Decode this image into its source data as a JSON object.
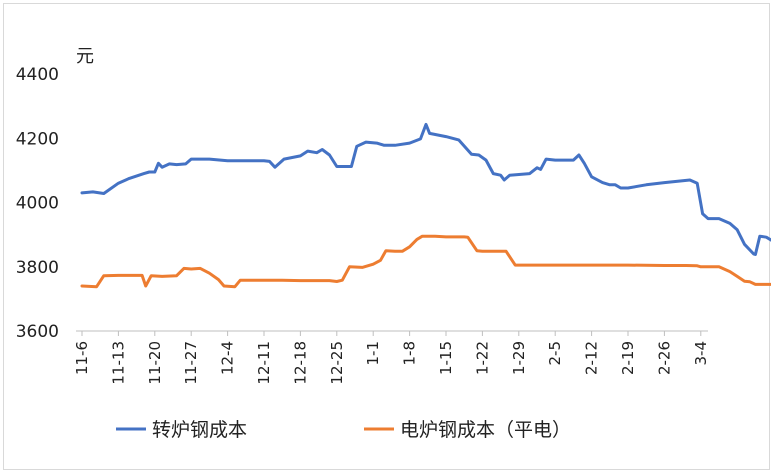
{
  "chart_data": {
    "type": "line",
    "unit_label": "元",
    "ylim": [
      3600,
      4400
    ],
    "yticks": [
      3600,
      3800,
      4000,
      4200,
      4400
    ],
    "x_tick_labels": [
      "11-6",
      "11-13",
      "11-20",
      "11-27",
      "12-4",
      "12-11",
      "12-18",
      "12-25",
      "1-1",
      "1-8",
      "1-15",
      "1-22",
      "1-29",
      "2-5",
      "2-12",
      "2-19",
      "2-26",
      "3-4"
    ],
    "grid": false,
    "legend_position": "bottom",
    "series": [
      {
        "name": "转炉钢成本",
        "color": "#4472C4",
        "points": [
          [
            0,
            4030
          ],
          [
            0.3,
            4033
          ],
          [
            0.6,
            4028
          ],
          [
            1.0,
            4060
          ],
          [
            1.3,
            4075
          ],
          [
            1.7,
            4090
          ],
          [
            1.85,
            4095
          ],
          [
            2.0,
            4095
          ],
          [
            2.1,
            4122
          ],
          [
            2.2,
            4110
          ],
          [
            2.4,
            4120
          ],
          [
            2.6,
            4118
          ],
          [
            2.85,
            4120
          ],
          [
            3.0,
            4135
          ],
          [
            3.5,
            4135
          ],
          [
            4.0,
            4130
          ],
          [
            4.5,
            4130
          ],
          [
            5.0,
            4130
          ],
          [
            5.15,
            4128
          ],
          [
            5.3,
            4110
          ],
          [
            5.55,
            4135
          ],
          [
            6.0,
            4145
          ],
          [
            6.2,
            4160
          ],
          [
            6.45,
            4155
          ],
          [
            6.6,
            4165
          ],
          [
            6.8,
            4148
          ],
          [
            7.0,
            4112
          ],
          [
            7.4,
            4112
          ],
          [
            7.55,
            4175
          ],
          [
            7.8,
            4188
          ],
          [
            8.1,
            4185
          ],
          [
            8.3,
            4178
          ],
          [
            8.6,
            4178
          ],
          [
            9.0,
            4185
          ],
          [
            9.3,
            4198
          ],
          [
            9.45,
            4243
          ],
          [
            9.55,
            4215
          ],
          [
            10.0,
            4205
          ],
          [
            10.35,
            4195
          ],
          [
            10.7,
            4150
          ],
          [
            10.9,
            4148
          ],
          [
            11.1,
            4132
          ],
          [
            11.3,
            4090
          ],
          [
            11.5,
            4085
          ],
          [
            11.6,
            4070
          ],
          [
            11.75,
            4085
          ],
          [
            12.3,
            4090
          ],
          [
            12.5,
            4108
          ],
          [
            12.6,
            4103
          ],
          [
            12.75,
            4135
          ],
          [
            13.0,
            4132
          ],
          [
            13.5,
            4132
          ],
          [
            13.65,
            4148
          ],
          [
            13.8,
            4122
          ],
          [
            14.0,
            4080
          ],
          [
            14.3,
            4062
          ],
          [
            14.5,
            4055
          ],
          [
            14.65,
            4055
          ],
          [
            14.8,
            4045
          ],
          [
            15.0,
            4045
          ],
          [
            15.5,
            4055
          ],
          [
            16.0,
            4062
          ],
          [
            16.5,
            4068
          ],
          [
            16.7,
            4070
          ],
          [
            16.9,
            4060
          ],
          [
            17.05,
            3965
          ],
          [
            17.2,
            3950
          ],
          [
            17.5,
            3950
          ],
          [
            17.8,
            3935
          ],
          [
            18.0,
            3915
          ],
          [
            18.2,
            3870
          ],
          [
            18.45,
            3840
          ],
          [
            18.5,
            3838
          ],
          [
            18.62,
            3895
          ],
          [
            18.8,
            3892
          ],
          [
            19.05,
            3875
          ],
          [
            19.25,
            3862
          ],
          [
            19.45,
            3832
          ],
          [
            19.65,
            3833
          ]
        ]
      },
      {
        "name": "电炉钢成本（平电）",
        "color": "#ED7D31",
        "points": [
          [
            0,
            3740
          ],
          [
            0.4,
            3738
          ],
          [
            0.6,
            3772
          ],
          [
            1.0,
            3773
          ],
          [
            1.5,
            3773
          ],
          [
            1.65,
            3773
          ],
          [
            1.75,
            3740
          ],
          [
            1.9,
            3772
          ],
          [
            2.2,
            3770
          ],
          [
            2.6,
            3772
          ],
          [
            2.8,
            3795
          ],
          [
            3.0,
            3793
          ],
          [
            3.25,
            3795
          ],
          [
            3.5,
            3780
          ],
          [
            3.75,
            3760
          ],
          [
            3.9,
            3740
          ],
          [
            4.2,
            3738
          ],
          [
            4.35,
            3758
          ],
          [
            4.7,
            3758
          ],
          [
            5.5,
            3758
          ],
          [
            6.0,
            3757
          ],
          [
            6.5,
            3757
          ],
          [
            6.8,
            3757
          ],
          [
            7.0,
            3754
          ],
          [
            7.15,
            3758
          ],
          [
            7.35,
            3800
          ],
          [
            7.7,
            3798
          ],
          [
            8.0,
            3808
          ],
          [
            8.2,
            3820
          ],
          [
            8.35,
            3850
          ],
          [
            8.6,
            3848
          ],
          [
            8.8,
            3848
          ],
          [
            9.0,
            3862
          ],
          [
            9.2,
            3885
          ],
          [
            9.35,
            3895
          ],
          [
            9.7,
            3895
          ],
          [
            10.0,
            3893
          ],
          [
            10.5,
            3893
          ],
          [
            10.6,
            3892
          ],
          [
            10.85,
            3850
          ],
          [
            11.0,
            3848
          ],
          [
            11.4,
            3848
          ],
          [
            11.65,
            3848
          ],
          [
            11.9,
            3805
          ],
          [
            12.5,
            3805
          ],
          [
            13.0,
            3805
          ],
          [
            14.0,
            3805
          ],
          [
            15.0,
            3805
          ],
          [
            16.0,
            3804
          ],
          [
            16.6,
            3804
          ],
          [
            16.9,
            3803
          ],
          [
            17.0,
            3800
          ],
          [
            17.5,
            3800
          ],
          [
            17.8,
            3785
          ],
          [
            18.0,
            3770
          ],
          [
            18.2,
            3755
          ],
          [
            18.35,
            3753
          ],
          [
            18.5,
            3745
          ],
          [
            18.9,
            3745
          ],
          [
            19.3,
            3747
          ],
          [
            19.45,
            3722
          ],
          [
            19.55,
            3700
          ],
          [
            19.65,
            3702
          ]
        ]
      }
    ]
  }
}
